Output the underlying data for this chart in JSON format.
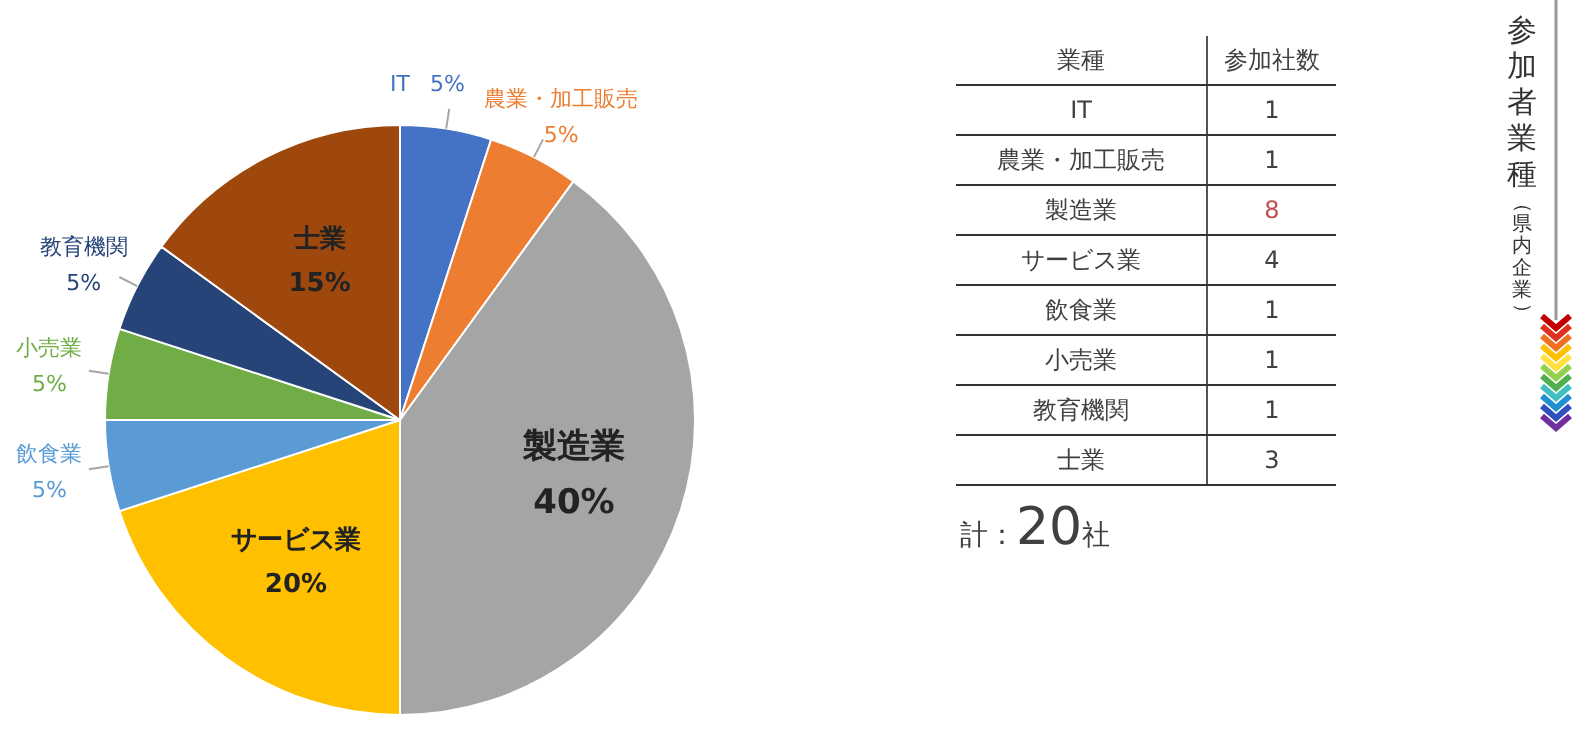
{
  "chart_data": [
    {
      "type": "pie",
      "categories": [
        "IT",
        "農業・加工販売",
        "製造業",
        "サービス業",
        "飲食業",
        "小売業",
        "教育機関",
        "士業"
      ],
      "values": [
        5,
        5,
        40,
        20,
        5,
        5,
        5,
        15
      ],
      "value_labels": [
        "5%",
        "5%",
        "40%",
        "20%",
        "5%",
        "5%",
        "5%",
        "15%"
      ],
      "colors": [
        "#4472c4",
        "#ed7d31",
        "#a5a5a5",
        "#ffc000",
        "#5b9bd5",
        "#70ad47",
        "#264478",
        "#9e480e"
      ],
      "legend": false
    },
    {
      "type": "other",
      "title": "参加者業種",
      "subtitle": "（県内企業）",
      "xlabel": "業種",
      "ylabel": "参加社数",
      "data_labels": true,
      "categories": [
        "IT",
        "農業・加工販売",
        "製造業",
        "サービス業",
        "飲食業",
        "小売業",
        "教育機関",
        "士業"
      ],
      "values": [
        1,
        1,
        8,
        4,
        1,
        1,
        1,
        3
      ],
      "colors": [
        "#404040",
        "#404040",
        "#c0504d",
        "#404040",
        "#404040",
        "#404040",
        "#404040",
        "#404040"
      ],
      "annotations": [
        "計：20社"
      ]
    }
  ]
}
